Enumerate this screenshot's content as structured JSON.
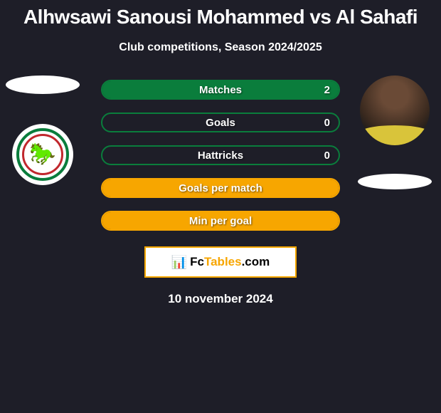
{
  "header": {
    "title": "Alhwsawi Sanousi Mohammed vs Al Sahafi",
    "subtitle": "Club competitions, Season 2024/2025"
  },
  "stats": [
    {
      "label": "Matches",
      "value": "2",
      "show_value": true,
      "fill_color": "#0a7d3c",
      "border_color": "#0a7d3c",
      "fill_left_pct": 0,
      "fill_right_pct": 0
    },
    {
      "label": "Goals",
      "value": "0",
      "show_value": true,
      "fill_color": "#0a7d3c",
      "border_color": "#0a7d3c",
      "fill_left_pct": 50,
      "fill_right_pct": 50
    },
    {
      "label": "Hattricks",
      "value": "0",
      "show_value": true,
      "fill_color": "#0a7d3c",
      "border_color": "#0a7d3c",
      "fill_left_pct": 50,
      "fill_right_pct": 50
    },
    {
      "label": "Goals per match",
      "value": "",
      "show_value": false,
      "fill_color": "#f7a600",
      "border_color": "#f7a600",
      "fill_left_pct": 0,
      "fill_right_pct": 0
    },
    {
      "label": "Min per goal",
      "value": "",
      "show_value": false,
      "fill_color": "#f7a600",
      "border_color": "#f7a600",
      "fill_left_pct": 0,
      "fill_right_pct": 0
    }
  ],
  "brand": {
    "name_a": "Fc",
    "name_b": "Tables",
    "suffix": ".com"
  },
  "date": "10 november 2024",
  "colors": {
    "background": "#1e1e28",
    "text": "#ffffff",
    "accent_green": "#0a7d3c",
    "accent_orange": "#f7a600"
  }
}
